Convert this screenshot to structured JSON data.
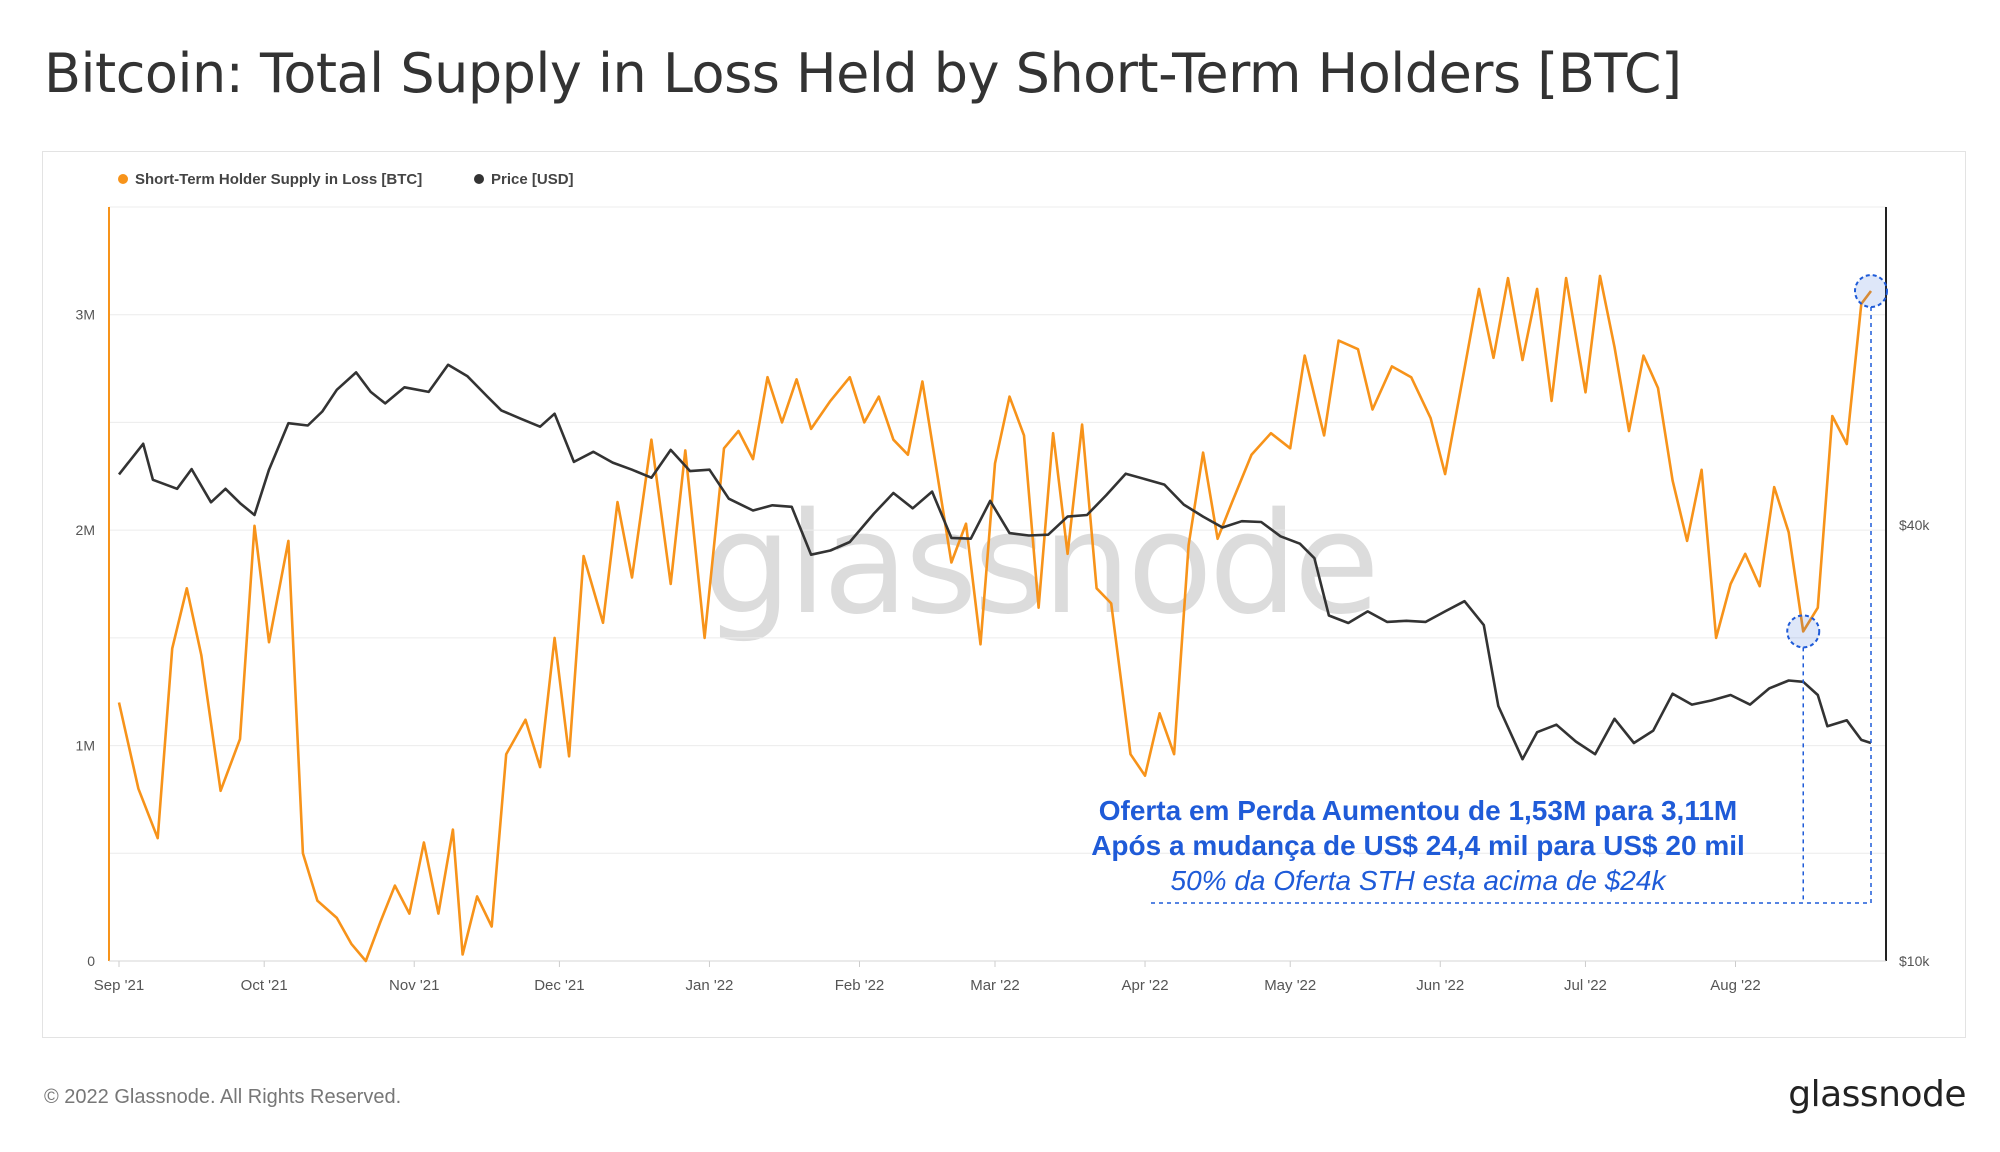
{
  "title": "Bitcoin: Total Supply in Loss Held by Short-Term Holders [BTC]",
  "footer": {
    "copyright": "© 2022 Glassnode. All Rights Reserved.",
    "logo": "glassnode"
  },
  "watermark": "glassnode",
  "colors": {
    "supply": "#f7931a",
    "price": "#333333",
    "annotation": "#1f5bd8"
  },
  "chart_data": {
    "type": "line",
    "title": "Bitcoin: Total Supply in Loss Held by Short-Term Holders [BTC]",
    "legend_position": "top-left",
    "grid": true,
    "x_ticks": [
      "Sep '21",
      "Oct '21",
      "Nov '21",
      "Dec '21",
      "Jan '22",
      "Feb '22",
      "Mar '22",
      "Apr '22",
      "May '22",
      "Jun '22",
      "Jul '22",
      "Aug '22"
    ],
    "x_range": [
      "2021-09-01",
      "2022-08-29"
    ],
    "y_left": {
      "ticks": [
        "0",
        "1M",
        "2M",
        "3M"
      ],
      "range": [
        0,
        3500000
      ]
    },
    "y_right": {
      "ticks": [
        "$10k",
        "$40k"
      ],
      "scale": "log",
      "range": [
        10000,
        110000
      ]
    },
    "series": [
      {
        "name": "Short-Term Holder Supply in Loss [BTC]",
        "axis": "left",
        "color": "#f7931a",
        "points": [
          [
            "2021-09-01",
            1200000
          ],
          [
            "2021-09-05",
            800000
          ],
          [
            "2021-09-09",
            570000
          ],
          [
            "2021-09-12",
            1450000
          ],
          [
            "2021-09-15",
            1730000
          ],
          [
            "2021-09-18",
            1420000
          ],
          [
            "2021-09-22",
            790000
          ],
          [
            "2021-09-26",
            1030000
          ],
          [
            "2021-09-29",
            2020000
          ],
          [
            "2021-10-02",
            1480000
          ],
          [
            "2021-10-06",
            1950000
          ],
          [
            "2021-10-09",
            500000
          ],
          [
            "2021-10-12",
            280000
          ],
          [
            "2021-10-16",
            200000
          ],
          [
            "2021-10-19",
            80000
          ],
          [
            "2021-10-22",
            0
          ],
          [
            "2021-10-25",
            180000
          ],
          [
            "2021-10-28",
            350000
          ],
          [
            "2021-10-31",
            220000
          ],
          [
            "2021-11-03",
            550000
          ],
          [
            "2021-11-06",
            220000
          ],
          [
            "2021-11-09",
            610000
          ],
          [
            "2021-11-11",
            30000
          ],
          [
            "2021-11-14",
            300000
          ],
          [
            "2021-11-17",
            160000
          ],
          [
            "2021-11-20",
            960000
          ],
          [
            "2021-11-24",
            1120000
          ],
          [
            "2021-11-27",
            900000
          ],
          [
            "2021-11-30",
            1500000
          ],
          [
            "2021-12-03",
            950000
          ],
          [
            "2021-12-06",
            1880000
          ],
          [
            "2021-12-10",
            1570000
          ],
          [
            "2021-12-13",
            2130000
          ],
          [
            "2021-12-16",
            1780000
          ],
          [
            "2021-12-20",
            2420000
          ],
          [
            "2021-12-24",
            1750000
          ],
          [
            "2021-12-27",
            2370000
          ],
          [
            "2021-12-31",
            1500000
          ],
          [
            "2022-01-04",
            2380000
          ],
          [
            "2022-01-07",
            2460000
          ],
          [
            "2022-01-10",
            2330000
          ],
          [
            "2022-01-13",
            2710000
          ],
          [
            "2022-01-16",
            2500000
          ],
          [
            "2022-01-19",
            2700000
          ],
          [
            "2022-01-22",
            2470000
          ],
          [
            "2022-01-26",
            2600000
          ],
          [
            "2022-01-30",
            2710000
          ],
          [
            "2022-02-02",
            2500000
          ],
          [
            "2022-02-05",
            2620000
          ],
          [
            "2022-02-08",
            2420000
          ],
          [
            "2022-02-11",
            2350000
          ],
          [
            "2022-02-14",
            2690000
          ],
          [
            "2022-02-17",
            2270000
          ],
          [
            "2022-02-20",
            1850000
          ],
          [
            "2022-02-23",
            2030000
          ],
          [
            "2022-02-26",
            1470000
          ],
          [
            "2022-03-01",
            2310000
          ],
          [
            "2022-03-04",
            2620000
          ],
          [
            "2022-03-07",
            2440000
          ],
          [
            "2022-03-10",
            1640000
          ],
          [
            "2022-03-13",
            2450000
          ],
          [
            "2022-03-16",
            1890000
          ],
          [
            "2022-03-19",
            2490000
          ],
          [
            "2022-03-22",
            1730000
          ],
          [
            "2022-03-25",
            1660000
          ],
          [
            "2022-03-29",
            960000
          ],
          [
            "2022-04-01",
            860000
          ],
          [
            "2022-04-04",
            1150000
          ],
          [
            "2022-04-07",
            960000
          ],
          [
            "2022-04-10",
            1930000
          ],
          [
            "2022-04-13",
            2360000
          ],
          [
            "2022-04-16",
            1960000
          ],
          [
            "2022-04-19",
            2130000
          ],
          [
            "2022-04-23",
            2350000
          ],
          [
            "2022-04-27",
            2450000
          ],
          [
            "2022-05-01",
            2380000
          ],
          [
            "2022-05-04",
            2810000
          ],
          [
            "2022-05-08",
            2440000
          ],
          [
            "2022-05-11",
            2880000
          ],
          [
            "2022-05-15",
            2840000
          ],
          [
            "2022-05-18",
            2560000
          ],
          [
            "2022-05-22",
            2760000
          ],
          [
            "2022-05-26",
            2710000
          ],
          [
            "2022-05-30",
            2520000
          ],
          [
            "2022-06-02",
            2260000
          ],
          [
            "2022-06-06",
            2750000
          ],
          [
            "2022-06-09",
            3120000
          ],
          [
            "2022-06-12",
            2800000
          ],
          [
            "2022-06-15",
            3170000
          ],
          [
            "2022-06-18",
            2790000
          ],
          [
            "2022-06-21",
            3120000
          ],
          [
            "2022-06-24",
            2600000
          ],
          [
            "2022-06-27",
            3170000
          ],
          [
            "2022-07-01",
            2640000
          ],
          [
            "2022-07-04",
            3180000
          ],
          [
            "2022-07-07",
            2850000
          ],
          [
            "2022-07-10",
            2460000
          ],
          [
            "2022-07-13",
            2810000
          ],
          [
            "2022-07-16",
            2660000
          ],
          [
            "2022-07-19",
            2230000
          ],
          [
            "2022-07-22",
            1950000
          ],
          [
            "2022-07-25",
            2280000
          ],
          [
            "2022-07-28",
            1500000
          ],
          [
            "2022-07-31",
            1750000
          ],
          [
            "2022-08-03",
            1890000
          ],
          [
            "2022-08-06",
            1740000
          ],
          [
            "2022-08-09",
            2200000
          ],
          [
            "2022-08-12",
            1990000
          ],
          [
            "2022-08-15",
            1530000
          ],
          [
            "2022-08-18",
            1640000
          ],
          [
            "2022-08-21",
            2530000
          ],
          [
            "2022-08-24",
            2400000
          ],
          [
            "2022-08-27",
            3050000
          ],
          [
            "2022-08-29",
            3110000
          ]
        ]
      },
      {
        "name": "Price [USD]",
        "axis": "right",
        "color": "#333333",
        "points": [
          [
            "2021-09-01",
            47000
          ],
          [
            "2021-09-06",
            51800
          ],
          [
            "2021-09-08",
            46200
          ],
          [
            "2021-09-13",
            44900
          ],
          [
            "2021-09-16",
            47800
          ],
          [
            "2021-09-20",
            43000
          ],
          [
            "2021-09-23",
            44900
          ],
          [
            "2021-09-26",
            42900
          ],
          [
            "2021-09-29",
            41300
          ],
          [
            "2021-10-02",
            47700
          ],
          [
            "2021-10-06",
            55300
          ],
          [
            "2021-10-10",
            54900
          ],
          [
            "2021-10-13",
            57400
          ],
          [
            "2021-10-16",
            61500
          ],
          [
            "2021-10-20",
            65000
          ],
          [
            "2021-10-23",
            61100
          ],
          [
            "2021-10-26",
            58900
          ],
          [
            "2021-10-30",
            62000
          ],
          [
            "2021-11-04",
            61100
          ],
          [
            "2021-11-08",
            66600
          ],
          [
            "2021-11-12",
            64200
          ],
          [
            "2021-11-16",
            60300
          ],
          [
            "2021-11-19",
            57600
          ],
          [
            "2021-11-23",
            56100
          ],
          [
            "2021-11-27",
            54700
          ],
          [
            "2021-11-30",
            57000
          ],
          [
            "2021-12-04",
            48900
          ],
          [
            "2021-12-08",
            50500
          ],
          [
            "2021-12-12",
            48800
          ],
          [
            "2021-12-16",
            47700
          ],
          [
            "2021-12-20",
            46500
          ],
          [
            "2021-12-24",
            50800
          ],
          [
            "2021-12-28",
            47500
          ],
          [
            "2022-01-01",
            47700
          ],
          [
            "2022-01-05",
            43500
          ],
          [
            "2022-01-10",
            41900
          ],
          [
            "2022-01-14",
            42600
          ],
          [
            "2022-01-18",
            42400
          ],
          [
            "2022-01-22",
            36400
          ],
          [
            "2022-01-26",
            36900
          ],
          [
            "2022-01-30",
            37900
          ],
          [
            "2022-02-04",
            41500
          ],
          [
            "2022-02-08",
            44300
          ],
          [
            "2022-02-12",
            42200
          ],
          [
            "2022-02-16",
            44500
          ],
          [
            "2022-02-20",
            38400
          ],
          [
            "2022-02-24",
            38300
          ],
          [
            "2022-02-28",
            43200
          ],
          [
            "2022-03-04",
            39000
          ],
          [
            "2022-03-08",
            38700
          ],
          [
            "2022-03-12",
            38800
          ],
          [
            "2022-03-16",
            41100
          ],
          [
            "2022-03-20",
            41300
          ],
          [
            "2022-03-24",
            44000
          ],
          [
            "2022-03-28",
            47100
          ],
          [
            "2022-04-01",
            46300
          ],
          [
            "2022-04-05",
            45500
          ],
          [
            "2022-04-09",
            42700
          ],
          [
            "2022-04-13",
            41100
          ],
          [
            "2022-04-17",
            39700
          ],
          [
            "2022-04-21",
            40500
          ],
          [
            "2022-04-25",
            40400
          ],
          [
            "2022-04-29",
            38600
          ],
          [
            "2022-05-03",
            37700
          ],
          [
            "2022-05-06",
            36000
          ],
          [
            "2022-05-09",
            30000
          ],
          [
            "2022-05-13",
            29300
          ],
          [
            "2022-05-17",
            30400
          ],
          [
            "2022-05-21",
            29400
          ],
          [
            "2022-05-25",
            29500
          ],
          [
            "2022-05-29",
            29400
          ],
          [
            "2022-06-02",
            30400
          ],
          [
            "2022-06-06",
            31400
          ],
          [
            "2022-06-10",
            29100
          ],
          [
            "2022-06-13",
            22500
          ],
          [
            "2022-06-18",
            19000
          ],
          [
            "2022-06-21",
            20700
          ],
          [
            "2022-06-25",
            21200
          ],
          [
            "2022-06-29",
            20100
          ],
          [
            "2022-07-03",
            19300
          ],
          [
            "2022-07-07",
            21600
          ],
          [
            "2022-07-11",
            20000
          ],
          [
            "2022-07-15",
            20800
          ],
          [
            "2022-07-19",
            23400
          ],
          [
            "2022-07-23",
            22600
          ],
          [
            "2022-07-27",
            22900
          ],
          [
            "2022-07-31",
            23300
          ],
          [
            "2022-08-04",
            22600
          ],
          [
            "2022-08-08",
            23800
          ],
          [
            "2022-08-12",
            24400
          ],
          [
            "2022-08-15",
            24300
          ],
          [
            "2022-08-18",
            23300
          ],
          [
            "2022-08-20",
            21100
          ],
          [
            "2022-08-24",
            21500
          ],
          [
            "2022-08-27",
            20200
          ],
          [
            "2022-08-29",
            20000
          ]
        ]
      }
    ],
    "annotations": [
      "Oferta em Perda Aumentou de 1,53M para 3,11M",
      "Após a mudança de US$ 24,4 mil para US$ 20 mil",
      "50% da Oferta STH esta acima de $24k"
    ]
  }
}
